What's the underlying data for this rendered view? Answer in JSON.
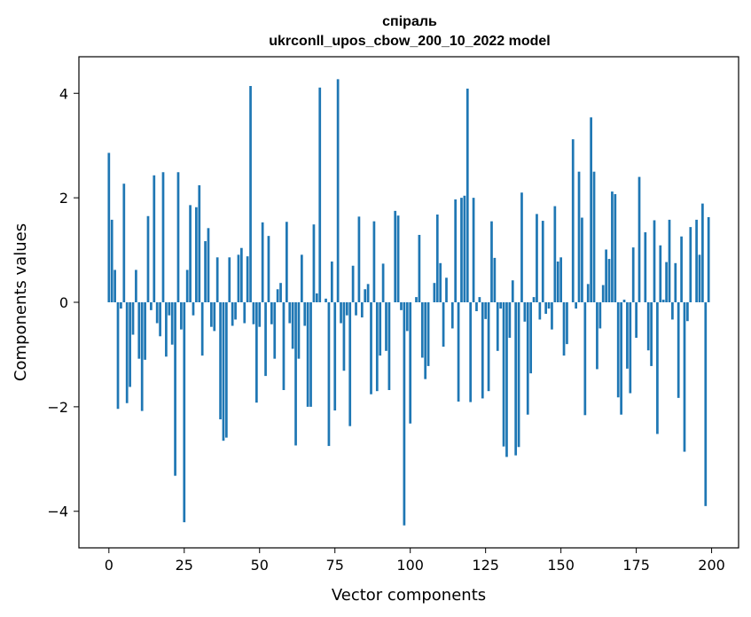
{
  "chart_data": {
    "type": "bar",
    "title": "спіраль",
    "subtitle": "ukrconll_upos_cbow_200_10_2022 model",
    "xlabel": "Vector components",
    "ylabel": "Components values",
    "xlim": [
      -9.95,
      208.95
    ],
    "ylim": [
      -4.7,
      4.7
    ],
    "xticks": [
      0,
      25,
      50,
      75,
      100,
      125,
      150,
      175,
      200
    ],
    "xtick_labels": [
      "0",
      "25",
      "50",
      "75",
      "100",
      "125",
      "150",
      "175",
      "200"
    ],
    "yticks": [
      -4,
      -2,
      0,
      2,
      4
    ],
    "ytick_labels": [
      "−4",
      "−2",
      "0",
      "2",
      "4"
    ],
    "grid": false,
    "legend": false,
    "bar_color": "#1f77b4",
    "x": [
      0,
      1,
      2,
      3,
      4,
      5,
      6,
      7,
      8,
      9,
      10,
      11,
      12,
      13,
      14,
      15,
      16,
      17,
      18,
      19,
      20,
      21,
      22,
      23,
      24,
      25,
      26,
      27,
      28,
      29,
      30,
      31,
      32,
      33,
      34,
      35,
      36,
      37,
      38,
      39,
      40,
      41,
      42,
      43,
      44,
      45,
      46,
      47,
      48,
      49,
      50,
      51,
      52,
      53,
      54,
      55,
      56,
      57,
      58,
      59,
      60,
      61,
      62,
      63,
      64,
      65,
      66,
      67,
      68,
      69,
      70,
      71,
      72,
      73,
      74,
      75,
      76,
      77,
      78,
      79,
      80,
      81,
      82,
      83,
      84,
      85,
      86,
      87,
      88,
      89,
      90,
      91,
      92,
      93,
      94,
      95,
      96,
      97,
      98,
      99,
      100,
      101,
      102,
      103,
      104,
      105,
      106,
      107,
      108,
      109,
      110,
      111,
      112,
      113,
      114,
      115,
      116,
      117,
      118,
      119,
      120,
      121,
      122,
      123,
      124,
      125,
      126,
      127,
      128,
      129,
      130,
      131,
      132,
      133,
      134,
      135,
      136,
      137,
      138,
      139,
      140,
      141,
      142,
      143,
      144,
      145,
      146,
      147,
      148,
      149,
      150,
      151,
      152,
      153,
      154,
      155,
      156,
      157,
      158,
      159,
      160,
      161,
      162,
      163,
      164,
      165,
      166,
      167,
      168,
      169,
      170,
      171,
      172,
      173,
      174,
      175,
      176,
      177,
      178,
      179,
      180,
      181,
      182,
      183,
      184,
      185,
      186,
      187,
      188,
      189,
      190,
      191,
      192,
      193,
      194,
      195,
      196,
      197,
      198,
      199
    ],
    "values": [
      2.86,
      1.58,
      0.62,
      -2.04,
      -0.12,
      2.27,
      -1.93,
      -1.62,
      -0.62,
      0.62,
      -1.08,
      -2.08,
      -1.1,
      1.65,
      -0.15,
      2.43,
      -0.4,
      -0.65,
      2.49,
      -1.04,
      -0.25,
      -0.81,
      -3.32,
      2.49,
      -0.52,
      -4.21,
      0.62,
      1.86,
      -0.25,
      1.82,
      2.24,
      -1.02,
      1.17,
      1.42,
      -0.47,
      -0.55,
      0.86,
      -2.24,
      -2.65,
      -2.59,
      0.86,
      -0.45,
      -0.33,
      0.91,
      1.04,
      -0.4,
      0.88,
      4.14,
      -0.42,
      -1.92,
      -0.47,
      1.53,
      -1.41,
      1.27,
      -0.42,
      -1.08,
      0.25,
      0.37,
      -1.68,
      1.54,
      -0.4,
      -0.89,
      -2.74,
      -1.08,
      0.91,
      -0.45,
      -2.0,
      -2.0,
      1.49,
      0.17,
      4.11,
      0.0,
      0.07,
      -2.75,
      0.78,
      -2.07,
      4.27,
      -0.4,
      -1.31,
      -0.25,
      -2.37,
      0.7,
      -0.25,
      1.64,
      -0.29,
      0.25,
      0.35,
      -1.76,
      1.55,
      -1.7,
      -1.02,
      0.74,
      -0.93,
      -1.68,
      0.0,
      1.75,
      1.66,
      -0.15,
      -4.27,
      -0.55,
      -2.32,
      0.0,
      0.1,
      1.29,
      -1.06,
      -1.47,
      -1.22,
      0.0,
      0.37,
      1.68,
      0.75,
      -0.85,
      0.47,
      0.0,
      -0.5,
      1.97,
      -1.9,
      2.0,
      2.04,
      4.09,
      -1.91,
      2.0,
      -0.17,
      0.1,
      -1.84,
      -0.32,
      -1.7,
      1.55,
      0.85,
      -0.93,
      -0.12,
      -2.76,
      -2.96,
      -0.68,
      0.42,
      -2.93,
      -2.77,
      2.1,
      -0.37,
      -2.15,
      -1.36,
      0.1,
      1.69,
      -0.33,
      1.56,
      -0.22,
      -0.12,
      -0.52,
      1.84,
      0.78,
      0.86,
      -1.02,
      -0.8,
      0.0,
      3.12,
      -0.12,
      2.5,
      1.62,
      -2.16,
      0.35,
      3.54,
      2.5,
      -1.28,
      -0.5,
      0.33,
      1.01,
      0.83,
      2.12,
      2.07,
      -1.82,
      -2.15,
      0.05,
      -1.27,
      -1.74,
      1.05,
      -0.68,
      2.4,
      0.0,
      1.34,
      -0.92,
      -1.22,
      1.57,
      -2.52,
      1.09,
      0.05,
      0.77,
      1.58,
      -0.33,
      0.75,
      -1.83,
      1.26,
      -2.86,
      -0.36,
      1.44,
      0.0,
      1.58,
      0.91,
      1.89,
      -3.9,
      1.63
    ]
  }
}
